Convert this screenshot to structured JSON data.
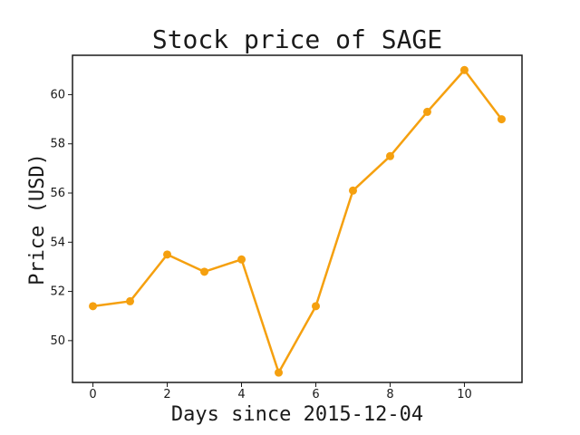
{
  "chart_data": {
    "type": "line",
    "title": "Stock price of SAGE",
    "xlabel": "Days since 2015-12-04",
    "ylabel": "Price (USD)",
    "x": [
      0,
      1,
      2,
      3,
      4,
      5,
      6,
      7,
      8,
      9,
      10,
      11
    ],
    "series": [
      {
        "name": "SAGE",
        "values": [
          51.4,
          51.6,
          53.5,
          52.8,
          53.3,
          48.7,
          51.4,
          56.1,
          57.5,
          59.3,
          61.0,
          59.0
        ],
        "color": "#f5a00f"
      }
    ],
    "xticks": [
      0,
      2,
      4,
      6,
      8,
      10
    ],
    "xtick_labels": [
      "0",
      "2",
      "4",
      "6",
      "8",
      "10"
    ],
    "yticks": [
      50,
      52,
      54,
      56,
      58,
      60
    ],
    "ytick_labels": [
      "50",
      "52",
      "54",
      "56",
      "58",
      "60"
    ],
    "xlim": [
      -0.55,
      11.55
    ],
    "ylim": [
      48.3,
      61.6
    ],
    "grid": false,
    "legend": "none"
  }
}
